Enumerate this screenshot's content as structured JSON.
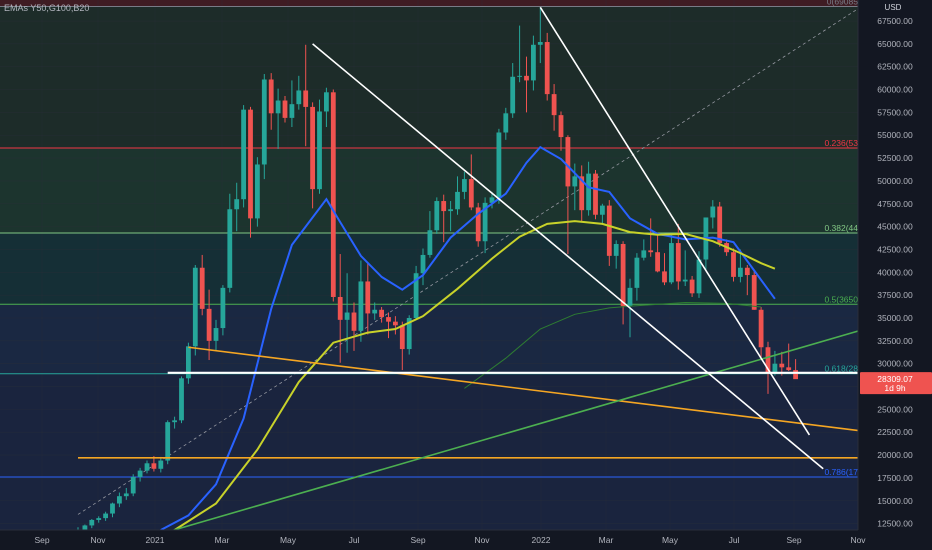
{
  "legend_text": "EMAs Y50,G100,B20",
  "chart_data": {
    "type": "candlestick",
    "currency_label": "USD",
    "x_ticks": [
      "Sep",
      "Nov",
      "2021",
      "Mar",
      "May",
      "Jul",
      "Sep",
      "Nov",
      "2022",
      "Mar",
      "May",
      "Jul",
      "Sep",
      "Nov"
    ],
    "y_ticks": [
      "12500.00",
      "15000.00",
      "17500.00",
      "20000.00",
      "22500.00",
      "25000.00",
      "27500.00",
      "30000.00",
      "32500.00",
      "35000.00",
      "37500.00",
      "40000.00",
      "42500.00",
      "45000.00",
      "47500.00",
      "50000.00",
      "52500.00",
      "55000.00",
      "57500.00",
      "60000.00",
      "62500.00",
      "65000.00",
      "67500.00"
    ],
    "ylim": [
      11800,
      69800
    ],
    "fib_levels": [
      {
        "label": "0(69085",
        "value": 69085,
        "color": "#787b86"
      },
      {
        "label": "0.236(53",
        "value": 53600,
        "color": "#f23645"
      },
      {
        "label": "0.382(44",
        "value": 44300,
        "color": "#81c784"
      },
      {
        "label": "0.5(3650",
        "value": 36500,
        "color": "#4caf50"
      },
      {
        "label": "0.618(28",
        "value": 28900,
        "color": "#26a69a"
      },
      {
        "label": "0.786(17",
        "value": 17600,
        "color": "#2962ff"
      }
    ],
    "last_price": "28309.07",
    "countdown": "1d 9h",
    "colors": {
      "up": "#26a69a",
      "down": "#ef5350",
      "ema_fast": "#2962ff",
      "ema_mid": "#c8d22a",
      "ema_slow": "#2e7d32",
      "trend_orange": "#f5a623",
      "trend_green": "#4caf50",
      "trend_white": "#ffffff"
    },
    "candles": [
      {
        "o": 10700,
        "h": 12100,
        "l": 10500,
        "c": 11800
      },
      {
        "o": 11800,
        "h": 12400,
        "l": 11500,
        "c": 12300
      },
      {
        "o": 12300,
        "h": 13000,
        "l": 12000,
        "c": 12900
      },
      {
        "o": 12900,
        "h": 13300,
        "l": 12600,
        "c": 13100
      },
      {
        "o": 13100,
        "h": 13800,
        "l": 12800,
        "c": 13600
      },
      {
        "o": 13600,
        "h": 14800,
        "l": 13200,
        "c": 14700
      },
      {
        "o": 14700,
        "h": 15900,
        "l": 14300,
        "c": 15500
      },
      {
        "o": 15500,
        "h": 16400,
        "l": 15100,
        "c": 15800
      },
      {
        "o": 15800,
        "h": 17900,
        "l": 15500,
        "c": 17600
      },
      {
        "o": 17600,
        "h": 18600,
        "l": 17100,
        "c": 18300
      },
      {
        "o": 18300,
        "h": 19400,
        "l": 18000,
        "c": 19100
      },
      {
        "o": 19100,
        "h": 19900,
        "l": 18200,
        "c": 18500
      },
      {
        "o": 18500,
        "h": 19800,
        "l": 18100,
        "c": 19400
      },
      {
        "o": 19400,
        "h": 23800,
        "l": 19000,
        "c": 23600
      },
      {
        "o": 23600,
        "h": 24200,
        "l": 22900,
        "c": 23800
      },
      {
        "o": 23800,
        "h": 28600,
        "l": 23500,
        "c": 28400
      },
      {
        "o": 28400,
        "h": 32300,
        "l": 27800,
        "c": 31900
      },
      {
        "o": 31900,
        "h": 40800,
        "l": 30900,
        "c": 40500
      },
      {
        "o": 40500,
        "h": 41900,
        "l": 35300,
        "c": 36000
      },
      {
        "o": 36000,
        "h": 38100,
        "l": 30400,
        "c": 32500
      },
      {
        "o": 32500,
        "h": 34800,
        "l": 31400,
        "c": 33900
      },
      {
        "o": 33900,
        "h": 38600,
        "l": 33100,
        "c": 38300
      },
      {
        "o": 38300,
        "h": 48600,
        "l": 37800,
        "c": 46900
      },
      {
        "o": 46900,
        "h": 49800,
        "l": 44500,
        "c": 48000
      },
      {
        "o": 48000,
        "h": 58300,
        "l": 47100,
        "c": 57800
      },
      {
        "o": 57800,
        "h": 58100,
        "l": 43800,
        "c": 45900
      },
      {
        "o": 45900,
        "h": 52600,
        "l": 45000,
        "c": 51800
      },
      {
        "o": 51800,
        "h": 61700,
        "l": 50200,
        "c": 61100
      },
      {
        "o": 61100,
        "h": 61800,
        "l": 55600,
        "c": 57400
      },
      {
        "o": 57400,
        "h": 60100,
        "l": 53500,
        "c": 58800
      },
      {
        "o": 58800,
        "h": 59300,
        "l": 56400,
        "c": 56900
      },
      {
        "o": 56900,
        "h": 61000,
        "l": 55900,
        "c": 58400
      },
      {
        "o": 58400,
        "h": 61500,
        "l": 57800,
        "c": 59900
      },
      {
        "o": 59900,
        "h": 64900,
        "l": 53800,
        "c": 58100
      },
      {
        "o": 58100,
        "h": 58600,
        "l": 47000,
        "c": 49100
      },
      {
        "o": 49100,
        "h": 58900,
        "l": 48600,
        "c": 57600
      },
      {
        "o": 57600,
        "h": 60200,
        "l": 55900,
        "c": 59700
      },
      {
        "o": 59700,
        "h": 60000,
        "l": 36800,
        "c": 37300
      },
      {
        "o": 37300,
        "h": 42000,
        "l": 30100,
        "c": 34800
      },
      {
        "o": 34800,
        "h": 39900,
        "l": 31200,
        "c": 35600
      },
      {
        "o": 35600,
        "h": 36700,
        "l": 31400,
        "c": 33600
      },
      {
        "o": 33600,
        "h": 41300,
        "l": 32400,
        "c": 39000
      },
      {
        "o": 39000,
        "h": 41100,
        "l": 33200,
        "c": 35500
      },
      {
        "o": 35500,
        "h": 36700,
        "l": 34800,
        "c": 35900
      },
      {
        "o": 35900,
        "h": 36200,
        "l": 34500,
        "c": 35100
      },
      {
        "o": 35100,
        "h": 35600,
        "l": 32800,
        "c": 34600
      },
      {
        "o": 34600,
        "h": 35200,
        "l": 33200,
        "c": 34200
      },
      {
        "o": 34200,
        "h": 34600,
        "l": 29300,
        "c": 31600
      },
      {
        "o": 31600,
        "h": 35300,
        "l": 31000,
        "c": 35000
      },
      {
        "o": 35000,
        "h": 40700,
        "l": 34800,
        "c": 39900
      },
      {
        "o": 39900,
        "h": 42600,
        "l": 38600,
        "c": 41900
      },
      {
        "o": 41900,
        "h": 46700,
        "l": 41600,
        "c": 44600
      },
      {
        "o": 44600,
        "h": 48200,
        "l": 44200,
        "c": 47800
      },
      {
        "o": 47800,
        "h": 48500,
        "l": 43300,
        "c": 46700
      },
      {
        "o": 46700,
        "h": 47800,
        "l": 44500,
        "c": 46900
      },
      {
        "o": 46900,
        "h": 50500,
        "l": 46300,
        "c": 48800
      },
      {
        "o": 48800,
        "h": 51000,
        "l": 48000,
        "c": 50200
      },
      {
        "o": 50200,
        "h": 52900,
        "l": 46800,
        "c": 47100
      },
      {
        "o": 47100,
        "h": 47600,
        "l": 42800,
        "c": 43400
      },
      {
        "o": 43400,
        "h": 48200,
        "l": 42100,
        "c": 47600
      },
      {
        "o": 47600,
        "h": 48800,
        "l": 47000,
        "c": 48200
      },
      {
        "o": 48200,
        "h": 55700,
        "l": 47500,
        "c": 55300
      },
      {
        "o": 55300,
        "h": 58000,
        "l": 54500,
        "c": 57400
      },
      {
        "o": 57400,
        "h": 62900,
        "l": 56900,
        "c": 61400
      },
      {
        "o": 61400,
        "h": 67000,
        "l": 60800,
        "c": 61500
      },
      {
        "o": 61500,
        "h": 63600,
        "l": 57500,
        "c": 61000
      },
      {
        "o": 61000,
        "h": 65900,
        "l": 59900,
        "c": 64900
      },
      {
        "o": 64900,
        "h": 69000,
        "l": 62900,
        "c": 65200
      },
      {
        "o": 65200,
        "h": 66200,
        "l": 58800,
        "c": 59500
      },
      {
        "o": 59500,
        "h": 60600,
        "l": 55500,
        "c": 57200
      },
      {
        "o": 57200,
        "h": 57600,
        "l": 53300,
        "c": 54800
      },
      {
        "o": 54800,
        "h": 55000,
        "l": 42000,
        "c": 49400
      },
      {
        "o": 49400,
        "h": 51900,
        "l": 46800,
        "c": 50500
      },
      {
        "o": 50500,
        "h": 51700,
        "l": 45600,
        "c": 46800
      },
      {
        "o": 46800,
        "h": 52100,
        "l": 46200,
        "c": 50800
      },
      {
        "o": 50800,
        "h": 51200,
        "l": 45800,
        "c": 46300
      },
      {
        "o": 46300,
        "h": 47500,
        "l": 45200,
        "c": 47300
      },
      {
        "o": 47300,
        "h": 47900,
        "l": 40700,
        "c": 41800
      },
      {
        "o": 41800,
        "h": 43500,
        "l": 40400,
        "c": 43100
      },
      {
        "o": 43100,
        "h": 43400,
        "l": 34300,
        "c": 36300
      },
      {
        "o": 36300,
        "h": 39300,
        "l": 32900,
        "c": 38300
      },
      {
        "o": 38300,
        "h": 42100,
        "l": 36900,
        "c": 41600
      },
      {
        "o": 41600,
        "h": 43600,
        "l": 41300,
        "c": 42400
      },
      {
        "o": 42400,
        "h": 45900,
        "l": 41700,
        "c": 42200
      },
      {
        "o": 42200,
        "h": 44300,
        "l": 40000,
        "c": 40100
      },
      {
        "o": 40100,
        "h": 42100,
        "l": 38600,
        "c": 38900
      },
      {
        "o": 38900,
        "h": 44200,
        "l": 38700,
        "c": 43200
      },
      {
        "o": 43200,
        "h": 45300,
        "l": 38100,
        "c": 39000
      },
      {
        "o": 39000,
        "h": 42400,
        "l": 38500,
        "c": 39200
      },
      {
        "o": 39200,
        "h": 39600,
        "l": 37300,
        "c": 37700
      },
      {
        "o": 37700,
        "h": 42300,
        "l": 37200,
        "c": 41400
      },
      {
        "o": 41400,
        "h": 46000,
        "l": 40300,
        "c": 46000
      },
      {
        "o": 46000,
        "h": 47900,
        "l": 44800,
        "c": 47200
      },
      {
        "o": 47200,
        "h": 47700,
        "l": 42800,
        "c": 43200
      },
      {
        "o": 43200,
        "h": 43600,
        "l": 41800,
        "c": 42200
      },
      {
        "o": 42200,
        "h": 42600,
        "l": 39000,
        "c": 39500
      },
      {
        "o": 39500,
        "h": 42500,
        "l": 38900,
        "c": 40500
      },
      {
        "o": 40500,
        "h": 40800,
        "l": 37500,
        "c": 39700
      },
      {
        "o": 39700,
        "h": 40200,
        "l": 35900,
        "c": 35900
      },
      {
        "o": 35900,
        "h": 36200,
        "l": 30700,
        "c": 31800
      },
      {
        "o": 31800,
        "h": 32400,
        "l": 26700,
        "c": 29000
      },
      {
        "o": 29000,
        "h": 31400,
        "l": 28700,
        "c": 30000
      },
      {
        "o": 30000,
        "h": 31300,
        "l": 28700,
        "c": 29600
      },
      {
        "o": 29600,
        "h": 32200,
        "l": 29200,
        "c": 29300
      },
      {
        "o": 29300,
        "h": 30500,
        "l": 28500,
        "c": 28309
      }
    ],
    "emas": {
      "blue_ema20": [
        {
          "x": 12,
          "y": 11800
        },
        {
          "x": 16,
          "y": 13400
        },
        {
          "x": 20,
          "y": 16800
        },
        {
          "x": 24,
          "y": 24000
        },
        {
          "x": 28,
          "y": 36000
        },
        {
          "x": 31,
          "y": 43000
        },
        {
          "x": 36,
          "y": 48000
        },
        {
          "x": 38,
          "y": 45500
        },
        {
          "x": 41,
          "y": 41800
        },
        {
          "x": 44,
          "y": 39500
        },
        {
          "x": 47,
          "y": 38100
        },
        {
          "x": 50,
          "y": 39700
        },
        {
          "x": 54,
          "y": 43800
        },
        {
          "x": 58,
          "y": 46400
        },
        {
          "x": 62,
          "y": 48600
        },
        {
          "x": 65,
          "y": 52000
        },
        {
          "x": 67,
          "y": 53700
        },
        {
          "x": 70,
          "y": 52400
        },
        {
          "x": 74,
          "y": 49300
        },
        {
          "x": 77,
          "y": 48800
        },
        {
          "x": 80,
          "y": 45900
        },
        {
          "x": 84,
          "y": 44200
        },
        {
          "x": 88,
          "y": 43600
        },
        {
          "x": 92,
          "y": 43800
        },
        {
          "x": 95,
          "y": 43300
        },
        {
          "x": 98,
          "y": 40200
        },
        {
          "x": 101,
          "y": 37100
        }
      ],
      "yellow_ema50": [
        {
          "x": 14,
          "y": 11800
        },
        {
          "x": 20,
          "y": 14700
        },
        {
          "x": 26,
          "y": 20600
        },
        {
          "x": 32,
          "y": 28000
        },
        {
          "x": 37,
          "y": 32300
        },
        {
          "x": 42,
          "y": 33400
        },
        {
          "x": 46,
          "y": 33800
        },
        {
          "x": 50,
          "y": 35200
        },
        {
          "x": 55,
          "y": 38200
        },
        {
          "x": 60,
          "y": 41500
        },
        {
          "x": 64,
          "y": 43900
        },
        {
          "x": 68,
          "y": 45300
        },
        {
          "x": 72,
          "y": 45600
        },
        {
          "x": 76,
          "y": 45300
        },
        {
          "x": 80,
          "y": 44400
        },
        {
          "x": 84,
          "y": 44100
        },
        {
          "x": 88,
          "y": 44200
        },
        {
          "x": 92,
          "y": 43400
        },
        {
          "x": 96,
          "y": 42100
        },
        {
          "x": 99,
          "y": 41000
        },
        {
          "x": 101,
          "y": 40400
        }
      ],
      "green_ema100": [
        {
          "x": 56,
          "y": 27300
        },
        {
          "x": 62,
          "y": 30600
        },
        {
          "x": 67,
          "y": 33800
        },
        {
          "x": 72,
          "y": 35400
        },
        {
          "x": 77,
          "y": 36100
        },
        {
          "x": 82,
          "y": 36400
        },
        {
          "x": 88,
          "y": 36700
        },
        {
          "x": 94,
          "y": 36600
        },
        {
          "x": 99,
          "y": 36200
        }
      ]
    },
    "trendlines": [
      {
        "color": "orange",
        "pts": [
          {
            "x": 16,
            "y": 31800
          },
          {
            "x": 115,
            "y": 22500
          }
        ]
      },
      {
        "color": "orange_h",
        "pts": [
          {
            "x": 0,
            "y": 19700
          },
          {
            "x": 115,
            "y": 19700
          }
        ]
      },
      {
        "color": "green",
        "pts": [
          {
            "x": 8,
            "y": 10500
          },
          {
            "x": 115,
            "y": 34000
          }
        ]
      },
      {
        "color": "white",
        "pts": [
          {
            "x": 34,
            "y": 65000
          },
          {
            "x": 108,
            "y": 18500
          }
        ]
      },
      {
        "color": "white",
        "pts": [
          {
            "x": 67,
            "y": 69000
          },
          {
            "x": 106,
            "y": 22200
          }
        ]
      },
      {
        "color": "white_h",
        "pts": [
          {
            "x": 13,
            "y": 29000
          },
          {
            "x": 115,
            "y": 29000
          }
        ]
      },
      {
        "color": "dashed",
        "pts": [
          {
            "x": 0,
            "y": 13500
          },
          {
            "x": 115,
            "y": 69800
          }
        ]
      }
    ]
  }
}
